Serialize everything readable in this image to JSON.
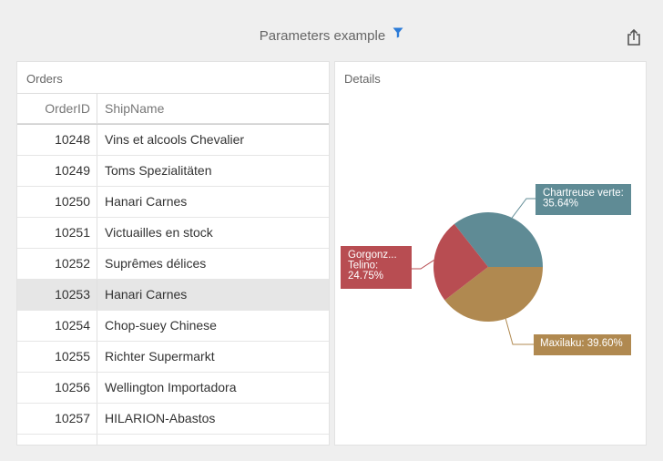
{
  "header": {
    "title": "Parameters example",
    "filter_icon": "filter-icon",
    "export_icon": "export-icon",
    "accent_color": "#2b7bd8"
  },
  "orders": {
    "caption": "Orders",
    "columns": [
      "OrderID",
      "ShipName"
    ],
    "rows": [
      {
        "id": "10248",
        "name": "Vins et alcools Chevalier"
      },
      {
        "id": "10249",
        "name": "Toms Spezialitäten"
      },
      {
        "id": "10250",
        "name": "Hanari Carnes"
      },
      {
        "id": "10251",
        "name": "Victuailles en stock"
      },
      {
        "id": "10252",
        "name": "Suprêmes délices"
      },
      {
        "id": "10253",
        "name": "Hanari Carnes",
        "selected": true
      },
      {
        "id": "10254",
        "name": "Chop-suey Chinese"
      },
      {
        "id": "10255",
        "name": "Richter Supermarkt"
      },
      {
        "id": "10256",
        "name": "Wellington Importadora"
      },
      {
        "id": "10257",
        "name": "HILARION-Abastos"
      }
    ]
  },
  "details": {
    "caption": "Details"
  },
  "chart_data": {
    "type": "pie",
    "slices": [
      {
        "name": "Chartreuse verte",
        "value": 35.64,
        "label": "Chartreuse verte:",
        "percent_text": "35.64%",
        "color": "#5f8b95"
      },
      {
        "name": "Maxilaku",
        "value": 39.6,
        "label": "Maxilaku: 39.60%",
        "percent_text": "",
        "color": "#b08950"
      },
      {
        "name": "Gorgonzola Telino",
        "value": 24.75,
        "label": "Gorgonz...",
        "label2": "Telino:",
        "percent_text": "24.75%",
        "color": "#b84d52"
      }
    ]
  }
}
